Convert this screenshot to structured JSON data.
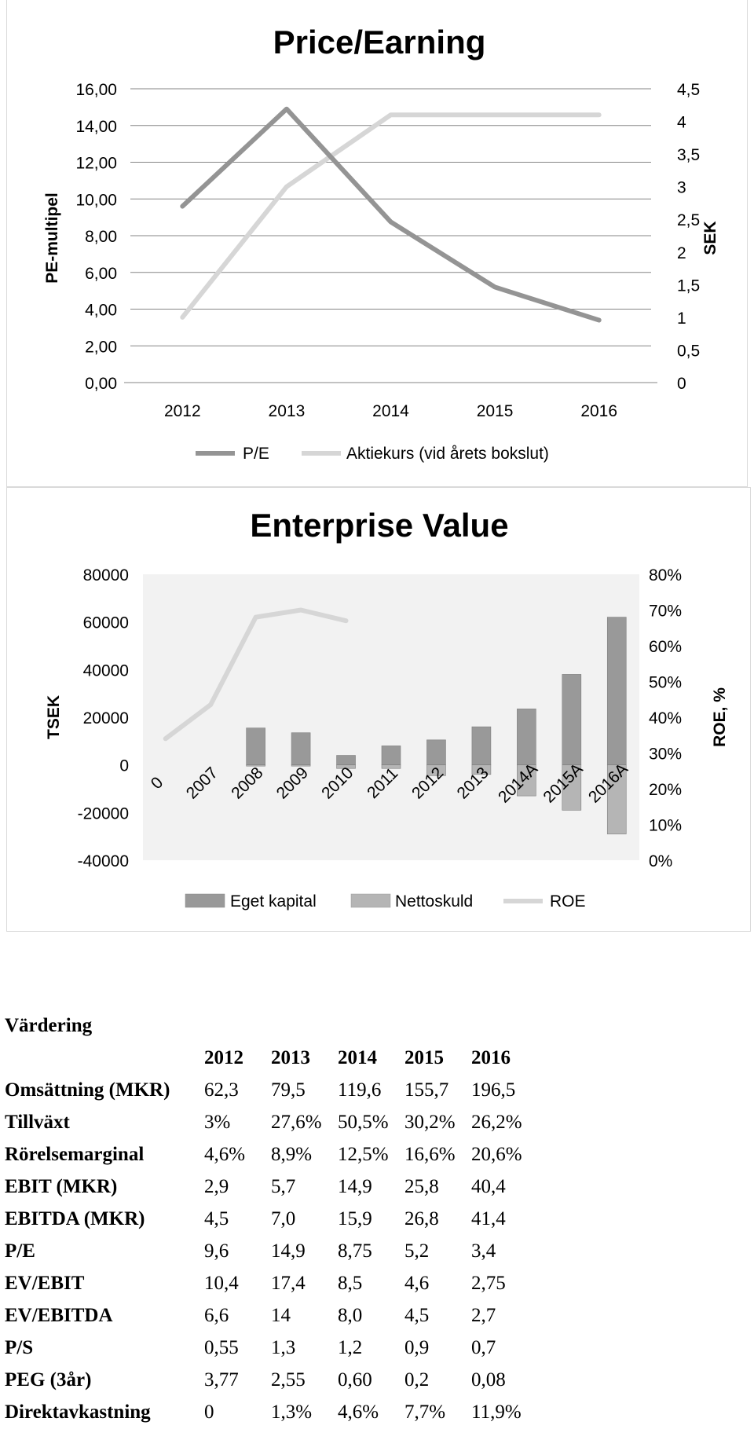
{
  "chart_data": [
    {
      "type": "line",
      "title": "Price/Earning",
      "x": [
        "2012",
        "2013",
        "2014",
        "2015",
        "2016"
      ],
      "y_left_label": "PE-multipel",
      "y_left_ticks": [
        "0,00",
        "2,00",
        "4,00",
        "6,00",
        "8,00",
        "10,00",
        "12,00",
        "14,00",
        "16,00"
      ],
      "y_left_range": [
        0,
        16
      ],
      "y_right_label": "SEK",
      "y_right_ticks": [
        "0",
        "0,5",
        "1",
        "1,5",
        "2",
        "2,5",
        "3",
        "3,5",
        "4",
        "4,5"
      ],
      "y_right_range": [
        0,
        4.5
      ],
      "grid": true,
      "legend_position": "bottom",
      "series": [
        {
          "name": "P/E",
          "axis": "left",
          "color": "#949494",
          "values": [
            9.6,
            14.9,
            8.75,
            5.2,
            3.4
          ]
        },
        {
          "name": "Aktiekurs (vid årets bokslut)",
          "axis": "right",
          "color": "#d6d6d6",
          "values": [
            1.0,
            3.0,
            4.1,
            4.1,
            4.1
          ]
        }
      ]
    },
    {
      "type": "bar",
      "title": "Enterprise Value",
      "categories": [
        "0",
        "2007",
        "2008",
        "2009",
        "2010",
        "2011",
        "2012",
        "2013",
        "2014A",
        "2015A",
        "2016A"
      ],
      "y_left_label": "TSEK",
      "y_left_ticks": [
        "-40000",
        "-20000",
        "0",
        "20000",
        "40000",
        "60000",
        "80000"
      ],
      "y_left_range": [
        -40000,
        80000
      ],
      "y_right_label": "ROE, %",
      "y_right_ticks": [
        "0%",
        "10%",
        "20%",
        "30%",
        "40%",
        "50%",
        "60%",
        "70%",
        "80%"
      ],
      "y_right_range": [
        0,
        80
      ],
      "grid": false,
      "legend_position": "bottom",
      "series": [
        {
          "name": "Eget kapital",
          "kind": "bar",
          "color": "#999999",
          "values": [
            0,
            0,
            15500,
            13500,
            4000,
            8000,
            10500,
            16000,
            23500,
            38000,
            62000
          ]
        },
        {
          "name": "Nettoskuld",
          "kind": "bar",
          "color": "#b5b5b5",
          "values": [
            0,
            0,
            -500,
            -500,
            -1500,
            -1500,
            -4500,
            -4000,
            -13000,
            -19000,
            -29000
          ]
        },
        {
          "name": "ROE",
          "kind": "line",
          "axis": "right",
          "color": "#d6d6d6",
          "values": [
            34,
            43.5,
            68,
            70,
            67,
            null,
            null,
            null,
            null,
            null,
            null
          ]
        }
      ]
    }
  ],
  "valuation": {
    "title": "Värdering",
    "years": [
      "2012",
      "2013",
      "2014",
      "2015",
      "2016"
    ],
    "rows": [
      {
        "label": "Omsättning (MKR)",
        "values": [
          "62,3",
          "79,5",
          "119,6",
          "155,7",
          "196,5"
        ]
      },
      {
        "label": "Tillväxt",
        "values": [
          "3%",
          "27,6%",
          "50,5%",
          "30,2%",
          "26,2%"
        ]
      },
      {
        "label": "Rörelsemarginal",
        "values": [
          "4,6%",
          "8,9%",
          "12,5%",
          "16,6%",
          "20,6%"
        ]
      },
      {
        "label": "EBIT (MKR)",
        "values": [
          "2,9",
          "5,7",
          "14,9",
          "25,8",
          "40,4"
        ]
      },
      {
        "label": "EBITDA (MKR)",
        "values": [
          "4,5",
          "7,0",
          "15,9",
          "26,8",
          "41,4"
        ]
      },
      {
        "label": "P/E",
        "values": [
          "9,6",
          "14,9",
          "8,75",
          "5,2",
          "3,4"
        ]
      },
      {
        "label": "EV/EBIT",
        "values": [
          "10,4",
          "17,4",
          "8,5",
          "4,6",
          "2,75"
        ]
      },
      {
        "label": "EV/EBITDA",
        "values": [
          "6,6",
          "14",
          "8,0",
          "4,5",
          "2,7"
        ]
      },
      {
        "label": "P/S",
        "values": [
          "0,55",
          "1,3",
          "1,2",
          "0,9",
          "0,7"
        ]
      },
      {
        "label": "PEG (3år)",
        "values": [
          "3,77",
          "2,55",
          "0,60",
          "0,2",
          "0,08"
        ]
      },
      {
        "label": "Direktavkastning",
        "values": [
          "0",
          "1,3%",
          "4,6%",
          "7,7%",
          "11,9%"
        ]
      }
    ]
  }
}
